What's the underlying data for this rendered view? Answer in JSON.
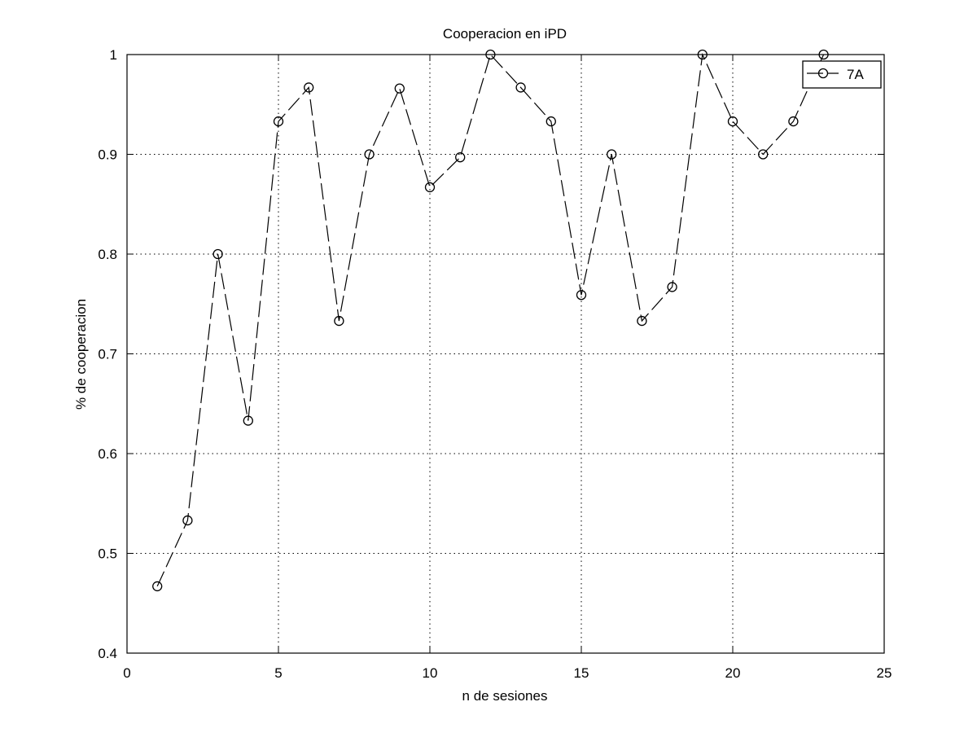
{
  "chart_data": {
    "type": "line",
    "title": "Cooperacion en iPD",
    "xlabel": "n de sesiones",
    "ylabel": "% de cooperacion",
    "xlim": [
      0,
      25
    ],
    "ylim": [
      0.4,
      1
    ],
    "xticks": [
      0,
      5,
      10,
      15,
      20,
      25
    ],
    "yticks": [
      0.4,
      0.5,
      0.6,
      0.7,
      0.8,
      0.9,
      1
    ],
    "xtick_labels": [
      "0",
      "5",
      "10",
      "15",
      "20",
      "25"
    ],
    "ytick_labels": [
      "0.4",
      "0.5",
      "0.6",
      "0.7",
      "0.8",
      "0.9",
      "1"
    ],
    "grid": true,
    "legend_position": "top-right",
    "series": [
      {
        "name": "7A",
        "color": "#000000",
        "line_style": "dashed",
        "marker": "open-circle",
        "x": [
          1,
          2,
          3,
          4,
          5,
          6,
          7,
          8,
          9,
          10,
          11,
          12,
          13,
          14,
          15,
          16,
          17,
          18,
          19,
          20,
          21,
          22,
          23
        ],
        "y": [
          0.467,
          0.533,
          0.8,
          0.633,
          0.933,
          0.967,
          0.733,
          0.9,
          0.966,
          0.867,
          0.897,
          1.0,
          0.967,
          0.933,
          0.759,
          0.9,
          0.733,
          0.767,
          1.0,
          0.933,
          0.9,
          0.933,
          1.0
        ]
      }
    ]
  }
}
